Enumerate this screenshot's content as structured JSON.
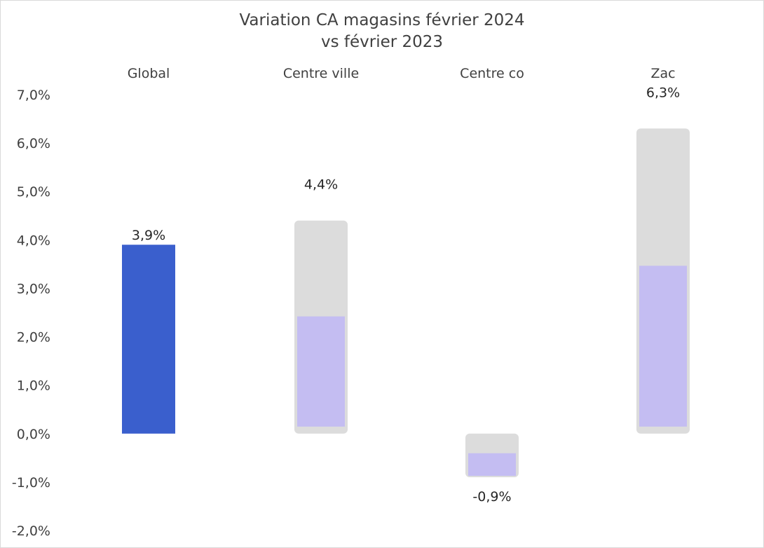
{
  "chart_data": {
    "type": "bar",
    "title_line1": "Variation CA magasins février 2024",
    "title_line2": "vs février 2023",
    "xlabel": "",
    "ylabel": "",
    "categories": [
      "Global",
      "Centre ville",
      "Centre co",
      "Zac"
    ],
    "values": [
      3.9,
      4.4,
      -0.9,
      6.3
    ],
    "data_labels": [
      "3,9%",
      "4,4%",
      "-0,9%",
      "6,3%"
    ],
    "ylim": [
      -2.0,
      7.0
    ],
    "y_ticks": [
      7.0,
      6.0,
      5.0,
      4.0,
      3.0,
      2.0,
      1.0,
      0.0,
      -1.0,
      -2.0
    ],
    "y_tick_labels": [
      "7,0%",
      "6,0%",
      "5,0%",
      "4,0%",
      "3,0%",
      "2,0%",
      "1,0%",
      "0,0%",
      "-1,0%",
      "-2,0%"
    ],
    "category_axis_position": "top",
    "grid": false,
    "legend": "none",
    "colors": {
      "highlight": "#3a5fcd",
      "muted_fill": "#c4bdf2",
      "muted_cap": "#dcdcdc",
      "text": "#404040"
    }
  }
}
